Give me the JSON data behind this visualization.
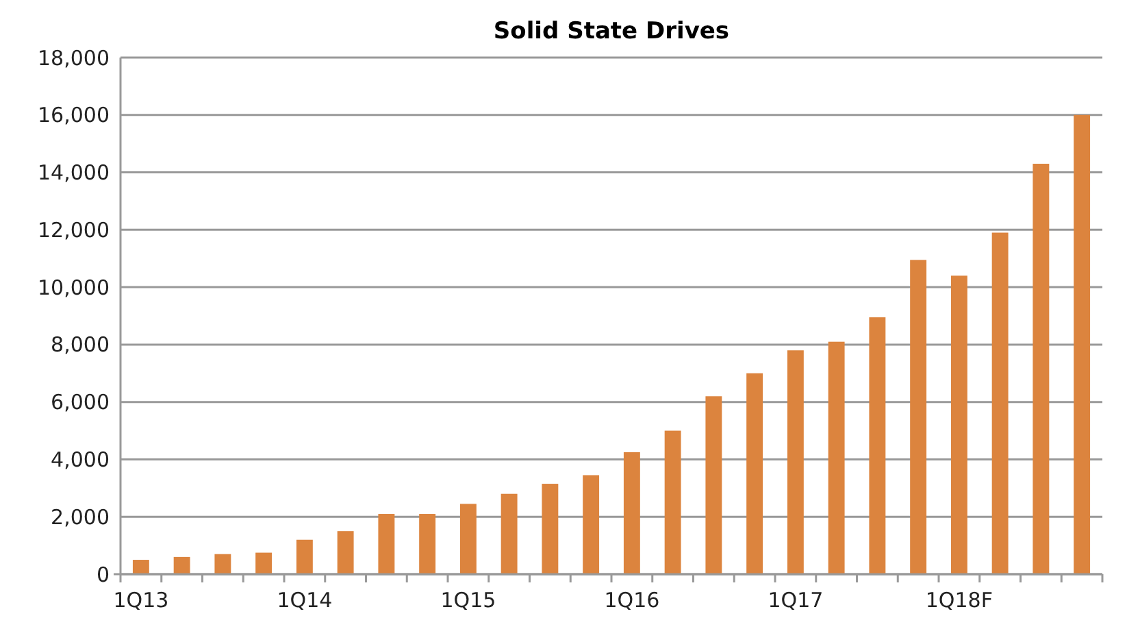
{
  "chart_data": {
    "type": "bar",
    "title": "Solid State Drives",
    "categories": [
      "1Q13",
      null,
      null,
      null,
      "1Q14",
      null,
      null,
      null,
      "1Q15",
      null,
      null,
      null,
      "1Q16",
      null,
      null,
      null,
      "1Q17",
      null,
      null,
      null,
      "1Q18F",
      null,
      null,
      null
    ],
    "values": [
      500,
      600,
      700,
      750,
      1200,
      1500,
      2100,
      2100,
      2450,
      2800,
      3150,
      3450,
      4250,
      5000,
      6200,
      7000,
      7800,
      8100,
      8950,
      10950,
      10400,
      11900,
      14300,
      16000
    ],
    "color": "#dc843e",
    "ylim": [
      0,
      18000
    ],
    "yticks": [
      {
        "value": 0,
        "label": "0"
      },
      {
        "value": 2000,
        "label": "2,000"
      },
      {
        "value": 4000,
        "label": "4,000"
      },
      {
        "value": 6000,
        "label": "6,000"
      },
      {
        "value": 8000,
        "label": "8,000"
      },
      {
        "value": 10000,
        "label": "10,000"
      },
      {
        "value": 12000,
        "label": "12,000"
      },
      {
        "value": 14000,
        "label": "14,000"
      },
      {
        "value": 16000,
        "label": "16,000"
      },
      {
        "value": 18000,
        "label": "18,000"
      }
    ],
    "grid": "y"
  }
}
